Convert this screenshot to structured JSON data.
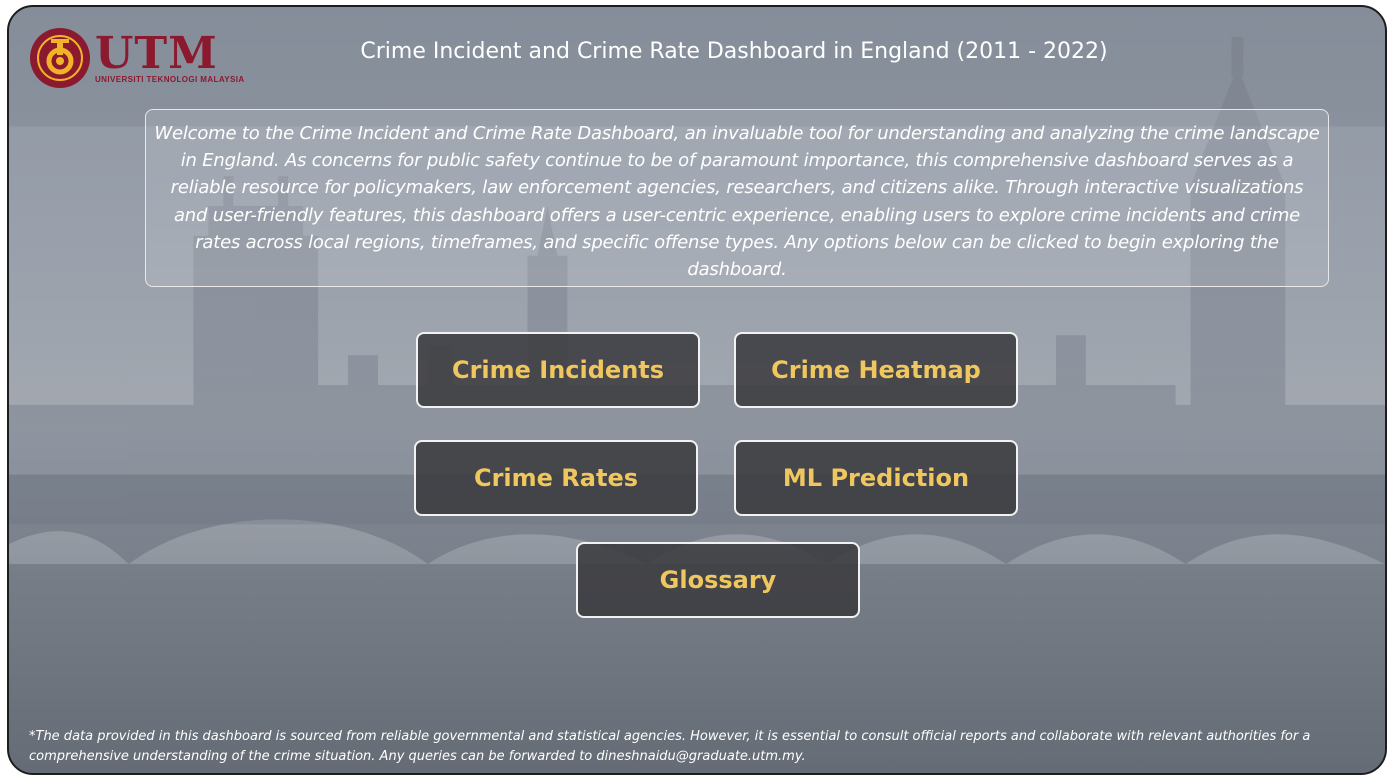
{
  "header": {
    "logo": {
      "name": "UTM",
      "subtitle": "UNIVERSITI TEKNOLOGI MALAYSIA"
    },
    "title": "Crime Incident and Crime Rate Dashboard in England (2011 - 2022)"
  },
  "welcome": {
    "text": "Welcome to the Crime Incident and Crime Rate Dashboard, an invaluable tool for understanding and analyzing the crime landscape in England. As concerns for public safety continue to be of paramount importance, this comprehensive dashboard serves as a reliable resource for policymakers, law enforcement agencies, researchers, and citizens alike. Through interactive visualizations and user-friendly features, this dashboard offers a user-centric experience, enabling users to explore crime incidents and crime rates across local regions, timeframes, and specific offense types. Any options below can be clicked to begin exploring the dashboard."
  },
  "nav": {
    "crime_incidents": "Crime Incidents",
    "crime_heatmap": "Crime Heatmap",
    "crime_rates": "Crime Rates",
    "ml_prediction": "ML Prediction",
    "glossary": "Glossary"
  },
  "footer": {
    "note": "*The data provided in this dashboard is sourced from reliable governmental and statistical agencies. However, it is essential to consult official reports and collaborate with relevant authorities for a comprehensive understanding of the crime situation. Any queries can be forwarded to dineshnaidu@graduate.utm.my."
  },
  "colors": {
    "button_text": "#f0c75e",
    "button_bg": "#3a3a3e",
    "logo": "#8b1a2f"
  }
}
